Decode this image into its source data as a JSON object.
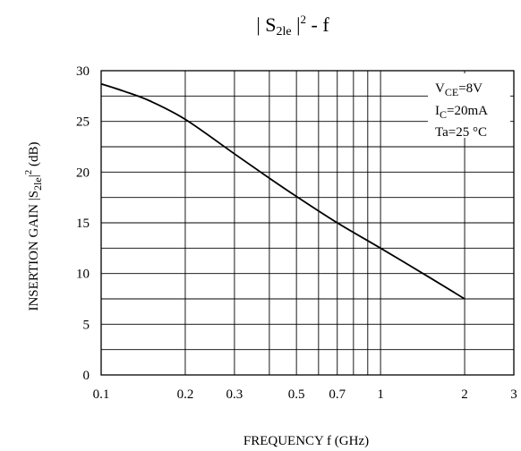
{
  "title": {
    "prefix": "| S",
    "sub": "2le",
    "suffix": " |",
    "sup": "2",
    "tail": "  -  f"
  },
  "xlabel": "FREQUENCY  f  (GHz)",
  "ylabel": {
    "prefix": "INSERTION GAIN  |S",
    "sub": "2le",
    "mid": "|",
    "sup": "2",
    "unit": "  (dB)"
  },
  "conditions": [
    {
      "main": "V",
      "sub": "CE",
      "rest": "=8V"
    },
    {
      "main": "I",
      "sub": "C",
      "rest": "=20mA"
    },
    {
      "main": "Ta=25 ",
      "sub": "",
      "rest": "°C"
    }
  ],
  "chart_data": {
    "type": "line",
    "x_scale": "log",
    "xlim": [
      0.1,
      3
    ],
    "ylim": [
      0,
      30
    ],
    "x_ticks": [
      0.1,
      0.2,
      0.3,
      0.5,
      0.7,
      1,
      2,
      3
    ],
    "x_tick_labels": [
      "0.1",
      "0.2",
      "0.3",
      "0.5",
      "0.7",
      "1",
      "2",
      "3"
    ],
    "x_grid": [
      0.2,
      0.3,
      0.4,
      0.5,
      0.6,
      0.7,
      0.8,
      0.9,
      1,
      2
    ],
    "y_ticks": [
      0,
      5,
      10,
      15,
      20,
      25,
      30
    ],
    "y_tick_labels": [
      "0",
      "5",
      "10",
      "15",
      "20",
      "25",
      "30"
    ],
    "y_grid": [
      2.5,
      5,
      7.5,
      10,
      12.5,
      15,
      17.5,
      20,
      22.5,
      25,
      27.5
    ],
    "grid": true,
    "series": [
      {
        "x": [
          0.1,
          0.12,
          0.15,
          0.2,
          0.3,
          0.4,
          0.5,
          0.7,
          1,
          1.5,
          2
        ],
        "y": [
          28.7,
          28.0,
          27.0,
          25.2,
          21.8,
          19.4,
          17.6,
          15.0,
          12.5,
          9.6,
          7.5
        ]
      }
    ]
  }
}
